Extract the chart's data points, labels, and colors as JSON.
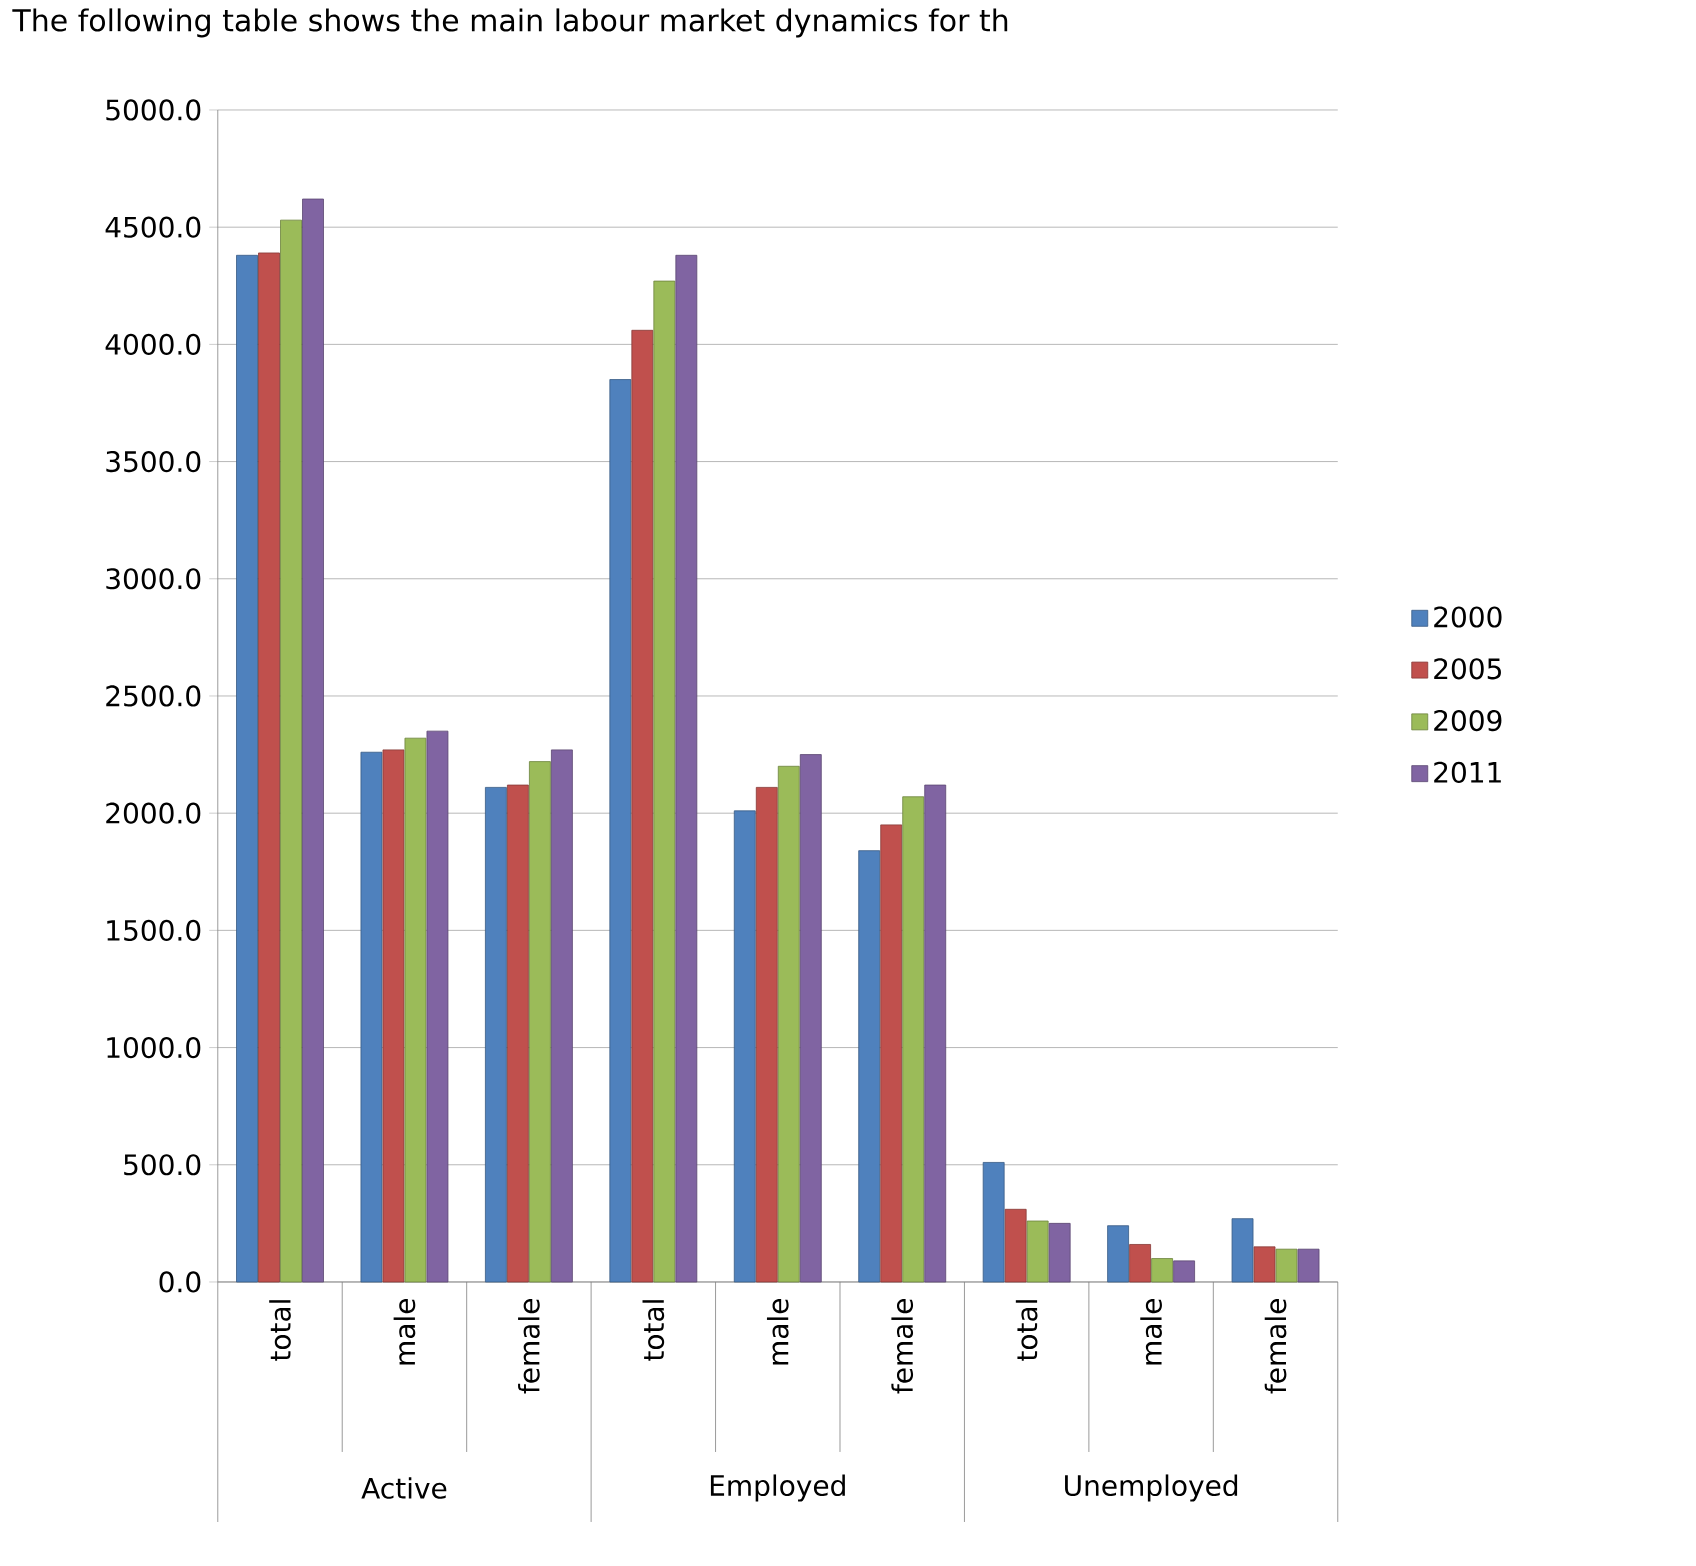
{
  "chart_data": {
    "type": "bar",
    "title": "The following table shows the main labour market dynamics for th",
    "categories": [
      "total",
      "male",
      "female",
      "total",
      "male",
      "female",
      "total",
      "male",
      "female"
    ],
    "annotations": [
      "Active",
      "Employed",
      "Unemployed"
    ],
    "series": [
      {
        "name": "2000",
        "color": "#4f81bd",
        "values": [
          4380,
          2260,
          2110,
          3850,
          2010,
          1840,
          510,
          240,
          270
        ]
      },
      {
        "name": "2005",
        "color": "#c0504d",
        "values": [
          4390,
          2270,
          2120,
          4060,
          2110,
          1950,
          310,
          160,
          150
        ]
      },
      {
        "name": "2009",
        "color": "#9bbb59",
        "values": [
          4530,
          2320,
          2220,
          4270,
          2200,
          2070,
          260,
          100,
          140
        ]
      },
      {
        "name": "2011",
        "color": "#8064a2",
        "values": [
          4620,
          2350,
          2270,
          4380,
          2250,
          2120,
          250,
          90,
          140
        ]
      }
    ],
    "ylim": [
      0,
      5000
    ],
    "yticks": [
      {
        "value": 0,
        "label": "0.0"
      },
      {
        "value": 500,
        "label": "500.0"
      },
      {
        "value": 1000,
        "label": "1000.0"
      },
      {
        "value": 1500,
        "label": "1500.0"
      },
      {
        "value": 2000,
        "label": "2000.0"
      },
      {
        "value": 2500,
        "label": "2500.0"
      },
      {
        "value": 3000,
        "label": "3000.0"
      },
      {
        "value": 3500,
        "label": "3500.0"
      },
      {
        "value": 4000,
        "label": "4000.0"
      },
      {
        "value": 4500,
        "label": "4500.0"
      },
      {
        "value": 5000,
        "label": "5000.0"
      }
    ],
    "grid": "y",
    "legend": "right"
  }
}
